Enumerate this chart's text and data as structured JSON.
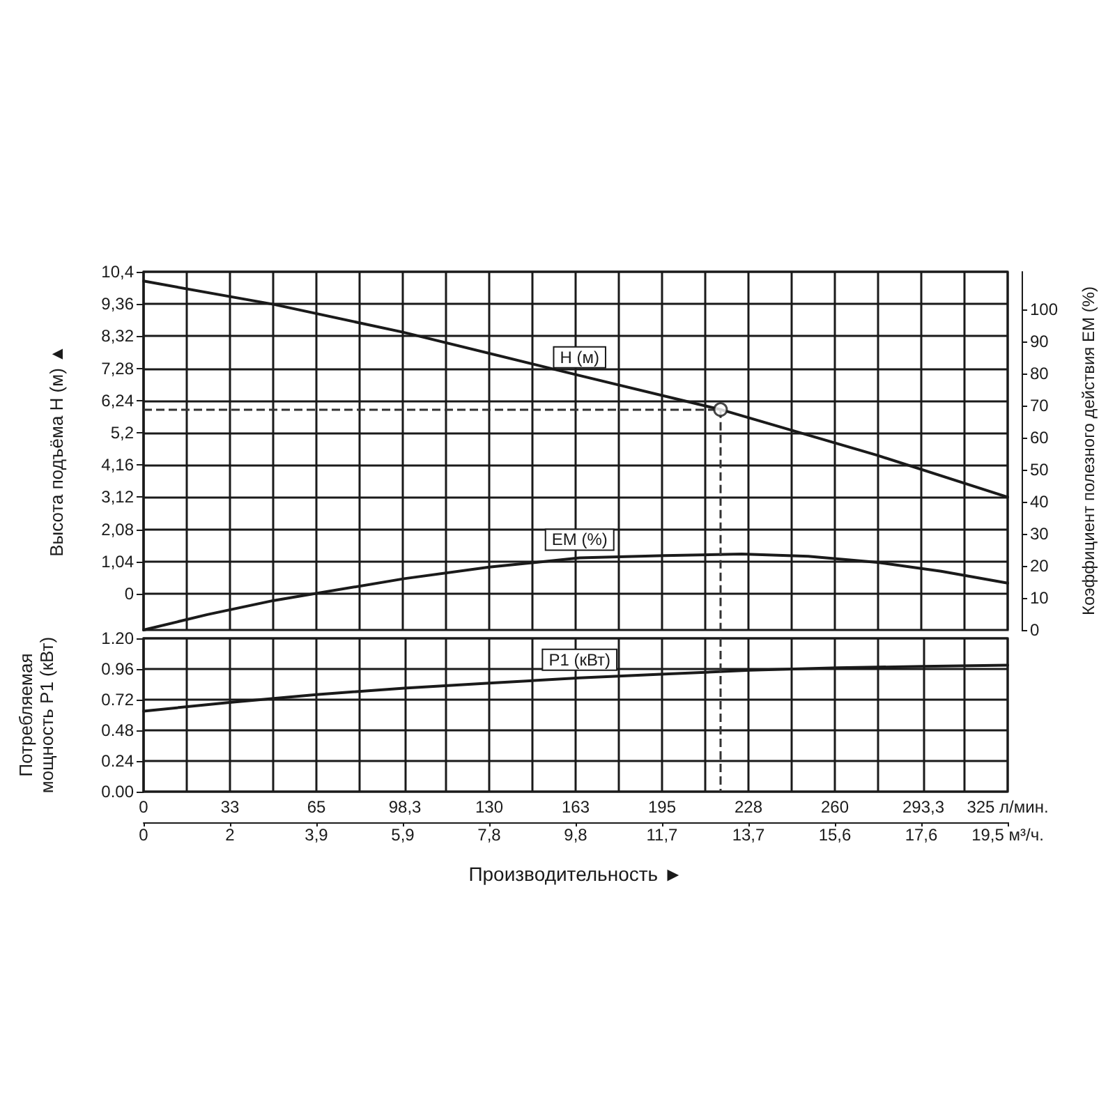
{
  "chart_data": [
    {
      "type": "line",
      "ylabel": "Высота подъёма H (м) ▲",
      "y2label": "Коэффициент полезного действия EM (%)",
      "xlim": [
        0,
        325
      ],
      "xticks": [
        {
          "value": 0,
          "label": null
        },
        {
          "value": 32.5,
          "label": null
        },
        {
          "value": 65,
          "label": null
        },
        {
          "value": 97.5,
          "label": null
        },
        {
          "value": 130,
          "label": null
        },
        {
          "value": 162.5,
          "label": null
        },
        {
          "value": 195,
          "label": null
        },
        {
          "value": 227.5,
          "label": null
        },
        {
          "value": 260,
          "label": null
        },
        {
          "value": 292.5,
          "label": null
        },
        {
          "value": 325,
          "label": null
        }
      ],
      "ylim": [
        -1.17,
        10.4
      ],
      "yticks": [
        0,
        {
          "value": 1.04,
          "label": "1,04"
        },
        {
          "value": 2.08,
          "label": "2,08"
        },
        {
          "value": 3.12,
          "label": "3,12"
        },
        {
          "value": 4.16,
          "label": "4,16"
        },
        {
          "value": 5.2,
          "label": "5,2"
        },
        {
          "value": 6.24,
          "label": "6,24"
        },
        {
          "value": 7.28,
          "label": "7,28"
        },
        {
          "value": 8.32,
          "label": "8,32"
        },
        {
          "value": 9.36,
          "label": "9,36"
        },
        {
          "value": 10.4,
          "label": "10,4"
        }
      ],
      "y2lim": [
        0,
        111.7
      ],
      "y2ticks": [
        0,
        10,
        20,
        30,
        40,
        50,
        60,
        70,
        80,
        90,
        100
      ],
      "grid": true,
      "tick_labels": "y",
      "ref_lines": [
        {
          "axis": "y",
          "value": 5.95,
          "line_style": "dashed",
          "color": "#333333"
        },
        {
          "axis": "x",
          "value": 217,
          "line_style": "dashed",
          "color": "#333333"
        }
      ],
      "series": [
        {
          "name": "H (м)",
          "color": "#1a1a1a",
          "x": [
            0,
            48.75,
            97.5,
            164,
            217,
            276,
            325
          ],
          "values": [
            10.1,
            9.35,
            8.45,
            7.05,
            5.95,
            4.47,
            3.12
          ]
        },
        {
          "name": "EM (%)",
          "color": "#1a1a1a",
          "axis": "y2",
          "x": [
            0,
            24,
            49,
            98,
            130,
            164,
            196,
            225,
            250,
            276,
            300,
            325
          ],
          "values": [
            0,
            4.8,
            9.2,
            16.0,
            19.6,
            22.5,
            23.2,
            23.7,
            23.0,
            21.1,
            18.3,
            14.6
          ]
        },
        {
          "type": "scatter",
          "marker": "circle",
          "color": "#ffffff",
          "x": [
            217
          ],
          "values": [
            5.95
          ]
        }
      ]
    },
    {
      "type": "line",
      "ylabel": "Потребляемая\nмощность P1 (кВт)",
      "xlabel": "Производительность ►",
      "xlim": [
        0,
        325
      ],
      "xticks": [
        0,
        {
          "value": 32.5,
          "label": "33"
        },
        65,
        {
          "value": 98.3,
          "label": "98,3"
        },
        130,
        {
          "value": 162.5,
          "label": "163"
        },
        195,
        {
          "value": 227.5,
          "label": "228"
        },
        260,
        {
          "value": 293.3,
          "label": "293,3"
        },
        {
          "value": 325,
          "label": "325 л/мин."
        }
      ],
      "x2lim": [
        0,
        19.5
      ],
      "x2ticks": [
        0,
        {
          "value": 1.95,
          "label": "2"
        },
        {
          "value": 3.9,
          "label": "3,9"
        },
        {
          "value": 5.85,
          "label": "5,9"
        },
        {
          "value": 7.8,
          "label": "7,8"
        },
        {
          "value": 9.75,
          "label": "9,8"
        },
        {
          "value": 11.7,
          "label": "11,7"
        },
        {
          "value": 13.65,
          "label": "13,7"
        },
        {
          "value": 15.6,
          "label": "15,6"
        },
        {
          "value": 17.55,
          "label": "17,6"
        },
        {
          "value": 19.5,
          "label": "19,5 м³/ч."
        }
      ],
      "ylim": [
        0,
        1.2
      ],
      "yticks": [
        {
          "value": 0,
          "label": "0.00"
        },
        0.24,
        0.48,
        0.72,
        0.96,
        {
          "value": 1.2,
          "label": "1.20"
        }
      ],
      "grid": true,
      "ref_lines": [
        {
          "axis": "x",
          "value": 217,
          "line_style": "dashed",
          "color": "#333333"
        }
      ],
      "series": [
        {
          "name": "P1 (кВт)",
          "color": "#1a1a1a",
          "x": [
            0,
            33,
            65,
            98,
            130,
            164,
            196,
            228,
            261,
            293,
            325
          ],
          "values": [
            0.63,
            0.7,
            0.76,
            0.81,
            0.85,
            0.89,
            0.92,
            0.95,
            0.97,
            0.98,
            0.99
          ]
        }
      ]
    }
  ]
}
